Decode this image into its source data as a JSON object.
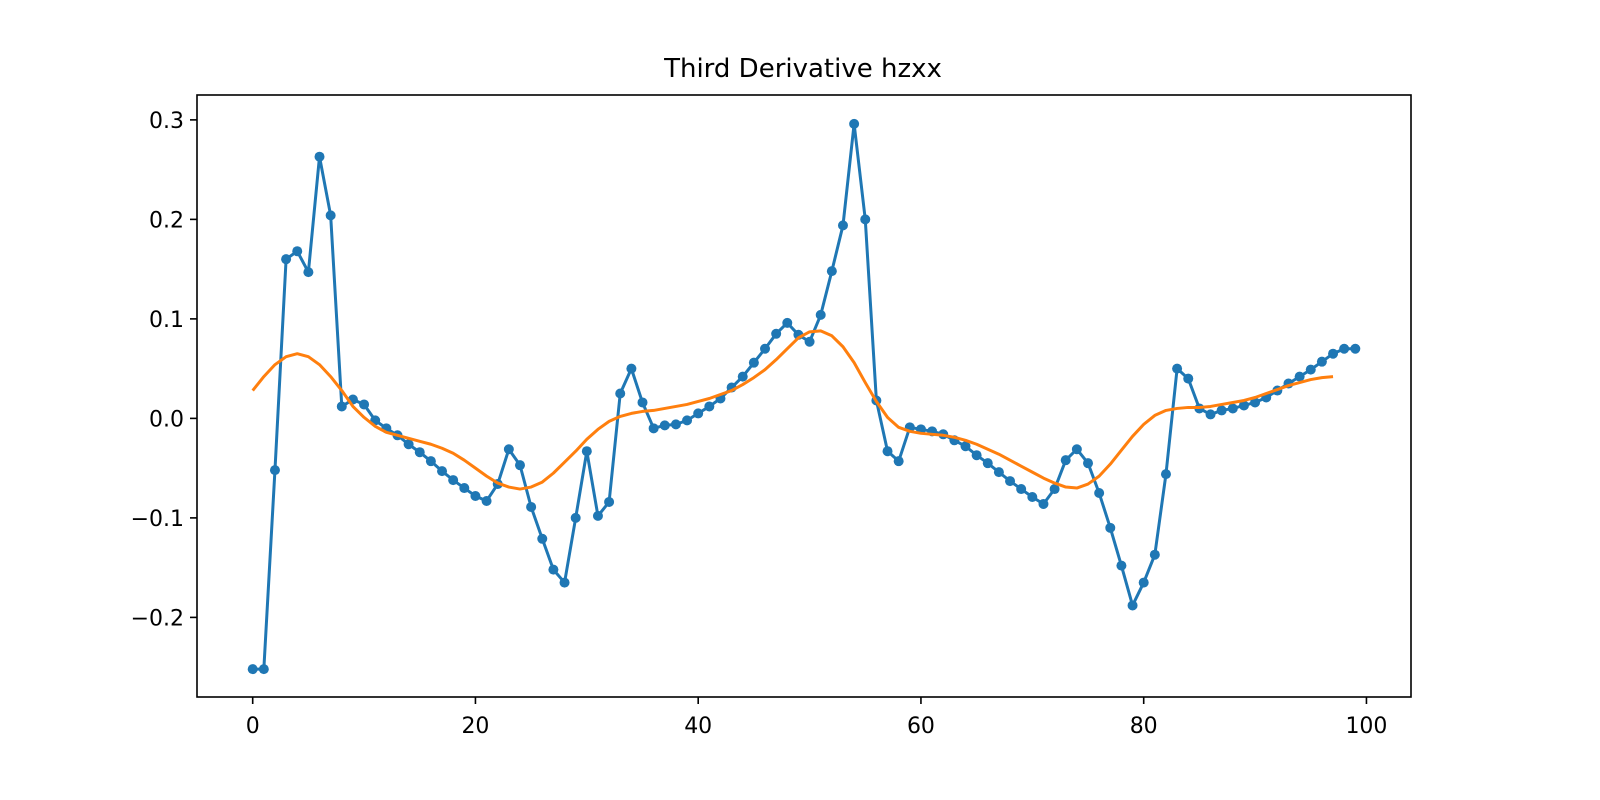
{
  "chart_data": {
    "type": "line",
    "title": "Third Derivative hzxx",
    "xlabel": "",
    "ylabel": "",
    "xlim": [
      -5,
      104
    ],
    "ylim": [
      -0.28,
      0.325
    ],
    "xticks": [
      0,
      20,
      40,
      60,
      80,
      100
    ],
    "yticks": [
      -0.2,
      -0.1,
      0.0,
      0.1,
      0.2,
      0.3
    ],
    "ytick_labels": [
      "−0.2",
      "−0.1",
      "0.0",
      "0.1",
      "0.2",
      "0.3"
    ],
    "grid": false,
    "legend": "none",
    "series": [
      {
        "color": "#1f77b4",
        "marker": "circle",
        "x": [
          0,
          1,
          2,
          3,
          4,
          5,
          6,
          7,
          8,
          9,
          10,
          11,
          12,
          13,
          14,
          15,
          16,
          17,
          18,
          19,
          20,
          21,
          22,
          23,
          24,
          25,
          26,
          27,
          28,
          29,
          30,
          31,
          32,
          33,
          34,
          35,
          36,
          37,
          38,
          39,
          40,
          41,
          42,
          43,
          44,
          45,
          46,
          47,
          48,
          49,
          50,
          51,
          52,
          53,
          54,
          55,
          56,
          57,
          58,
          59,
          60,
          61,
          62,
          63,
          64,
          65,
          66,
          67,
          68,
          69,
          70,
          71,
          72,
          73,
          74,
          75,
          76,
          77,
          78,
          79,
          80,
          81,
          82,
          83,
          84,
          85,
          86,
          87,
          88,
          89,
          90,
          91,
          92,
          93,
          94,
          95,
          96,
          97,
          98,
          99
        ],
        "values": [
          -0.252,
          -0.252,
          -0.052,
          0.16,
          0.168,
          0.147,
          0.263,
          0.204,
          0.012,
          0.019,
          0.014,
          -0.002,
          -0.01,
          -0.017,
          -0.026,
          -0.034,
          -0.043,
          -0.053,
          -0.062,
          -0.07,
          -0.078,
          -0.083,
          -0.066,
          -0.031,
          -0.047,
          -0.089,
          -0.121,
          -0.152,
          -0.165,
          -0.1,
          -0.033,
          -0.098,
          -0.084,
          0.025,
          0.05,
          0.016,
          -0.01,
          -0.007,
          -0.006,
          -0.002,
          0.005,
          0.012,
          0.02,
          0.031,
          0.042,
          0.056,
          0.07,
          0.085,
          0.096,
          0.084,
          0.077,
          0.104,
          0.148,
          0.194,
          0.296,
          0.2,
          0.018,
          -0.033,
          -0.043,
          -0.009,
          -0.011,
          -0.013,
          -0.016,
          -0.022,
          -0.028,
          -0.037,
          -0.045,
          -0.054,
          -0.063,
          -0.071,
          -0.079,
          -0.086,
          -0.071,
          -0.042,
          -0.031,
          -0.045,
          -0.075,
          -0.11,
          -0.148,
          -0.188,
          -0.165,
          -0.137,
          -0.056,
          0.05,
          0.04,
          0.01,
          0.004,
          0.008,
          0.01,
          0.013,
          0.016,
          0.021,
          0.028,
          0.035,
          0.042,
          0.049,
          0.057,
          0.065,
          0.07,
          0.07
        ]
      },
      {
        "color": "#ff7f0e",
        "marker": "none",
        "x": [
          0,
          1,
          2,
          3,
          4,
          5,
          6,
          7,
          8,
          9,
          10,
          11,
          12,
          13,
          14,
          15,
          16,
          17,
          18,
          19,
          20,
          21,
          22,
          23,
          24,
          25,
          26,
          27,
          28,
          29,
          30,
          31,
          32,
          33,
          34,
          35,
          36,
          37,
          38,
          39,
          40,
          41,
          42,
          43,
          44,
          45,
          46,
          47,
          48,
          49,
          50,
          51,
          52,
          53,
          54,
          55,
          56,
          57,
          58,
          59,
          60,
          61,
          62,
          63,
          64,
          65,
          66,
          67,
          68,
          69,
          70,
          71,
          72,
          73,
          74,
          75,
          76,
          77,
          78,
          79,
          80,
          81,
          82,
          83,
          84,
          85,
          86,
          87,
          88,
          89,
          90,
          91,
          92,
          93,
          94,
          95,
          96,
          97
        ],
        "values": [
          0.028,
          0.042,
          0.054,
          0.062,
          0.065,
          0.062,
          0.054,
          0.042,
          0.028,
          0.012,
          0.001,
          -0.008,
          -0.014,
          -0.017,
          -0.02,
          -0.023,
          -0.026,
          -0.03,
          -0.035,
          -0.042,
          -0.05,
          -0.058,
          -0.065,
          -0.069,
          -0.071,
          -0.069,
          -0.064,
          -0.055,
          -0.044,
          -0.033,
          -0.021,
          -0.011,
          -0.003,
          0.002,
          0.005,
          0.007,
          0.008,
          0.01,
          0.012,
          0.014,
          0.017,
          0.02,
          0.024,
          0.028,
          0.034,
          0.041,
          0.049,
          0.059,
          0.07,
          0.081,
          0.087,
          0.088,
          0.083,
          0.072,
          0.056,
          0.036,
          0.017,
          0.001,
          -0.009,
          -0.013,
          -0.015,
          -0.016,
          -0.017,
          -0.019,
          -0.022,
          -0.026,
          -0.031,
          -0.036,
          -0.042,
          -0.048,
          -0.054,
          -0.06,
          -0.065,
          -0.069,
          -0.07,
          -0.066,
          -0.058,
          -0.046,
          -0.032,
          -0.018,
          -0.006,
          0.003,
          0.008,
          0.01,
          0.011,
          0.011,
          0.012,
          0.014,
          0.016,
          0.018,
          0.021,
          0.025,
          0.029,
          0.033,
          0.036,
          0.039,
          0.041,
          0.042
        ]
      }
    ]
  }
}
